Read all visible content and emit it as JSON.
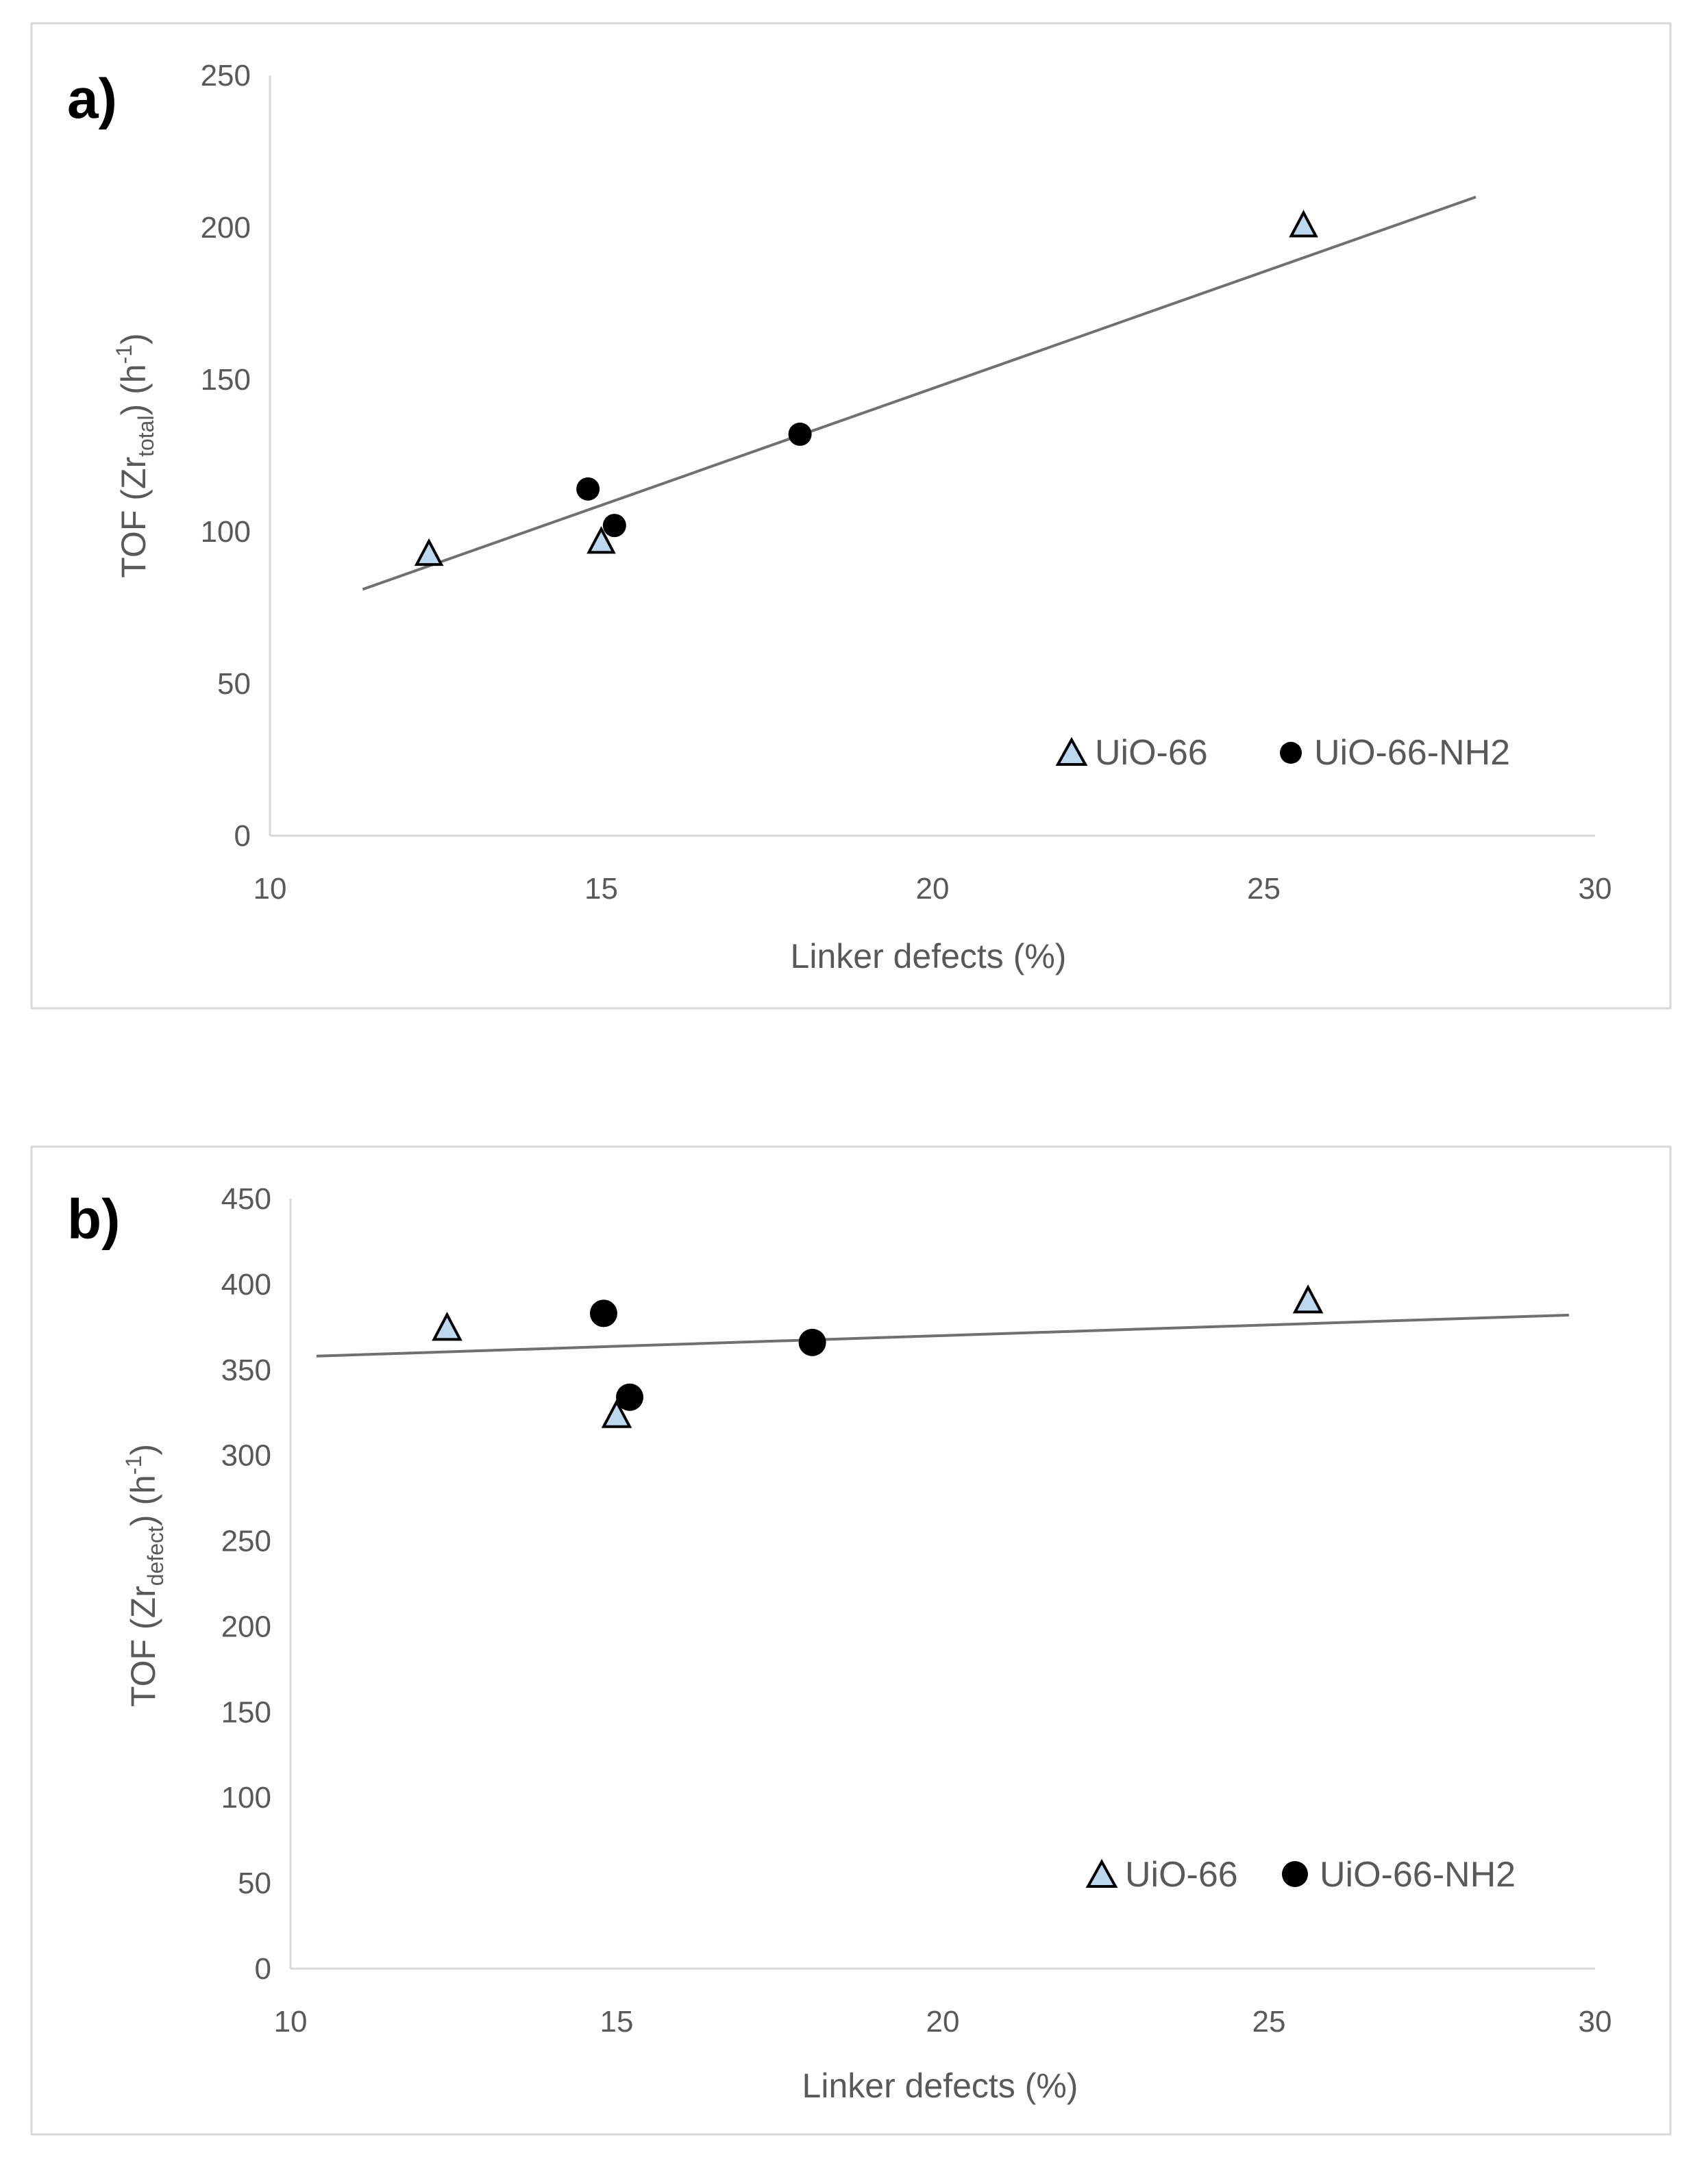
{
  "chart_data": [
    {
      "type": "scatter",
      "panel_label": "a)",
      "xlabel": "Linker defects (%)",
      "ylabel_main": "TOF (Zr",
      "ylabel_sub": "total",
      "ylabel_mid": ") (h",
      "ylabel_sup": "-1",
      "ylabel_end": ")",
      "xlim": [
        10,
        30
      ],
      "ylim": [
        0,
        250
      ],
      "xticks": [
        "10",
        "15",
        "20",
        "25",
        "30"
      ],
      "yticks": [
        "0",
        "50",
        "100",
        "150",
        "200",
        "250"
      ],
      "series": [
        {
          "name": "UiO-66",
          "marker": "triangle",
          "color": "#bdd7ee",
          "x": [
            12.4,
            15.0,
            25.6
          ],
          "y": [
            93,
            97,
            201
          ]
        },
        {
          "name": "UiO-66-NH2",
          "marker": "circle",
          "color": "#000000",
          "x": [
            14.8,
            15.2,
            18.0
          ],
          "y": [
            114,
            102,
            132
          ]
        }
      ],
      "trendline": {
        "x": [
          11.4,
          28.2
        ],
        "y": [
          81,
          210
        ]
      },
      "legend": [
        "UiO-66",
        "UiO-66-NH2"
      ]
    },
    {
      "type": "scatter",
      "panel_label": "b)",
      "xlabel": "Linker defects (%)",
      "ylabel_main": "TOF (Zr",
      "ylabel_sub": "defect",
      "ylabel_mid": ") (h",
      "ylabel_sup": "-1",
      "ylabel_end": ")",
      "xlim": [
        10,
        30
      ],
      "ylim": [
        0,
        450
      ],
      "xticks": [
        "10",
        "15",
        "20",
        "25",
        "30"
      ],
      "yticks": [
        "0",
        "50",
        "100",
        "150",
        "200",
        "250",
        "300",
        "350",
        "400",
        "450"
      ],
      "series": [
        {
          "name": "UiO-66",
          "marker": "triangle",
          "color": "#bdd7ee",
          "x": [
            12.4,
            15.0,
            25.6
          ],
          "y": [
            375,
            324,
            391
          ]
        },
        {
          "name": "UiO-66-NH2",
          "marker": "circle",
          "color": "#000000",
          "x": [
            14.8,
            15.2,
            18.0
          ],
          "y": [
            383,
            334,
            366
          ]
        }
      ],
      "trendline": {
        "x": [
          10.4,
          29.6
        ],
        "y": [
          358,
          382
        ]
      },
      "legend": [
        "UiO-66",
        "UiO-66-NH2"
      ]
    }
  ]
}
